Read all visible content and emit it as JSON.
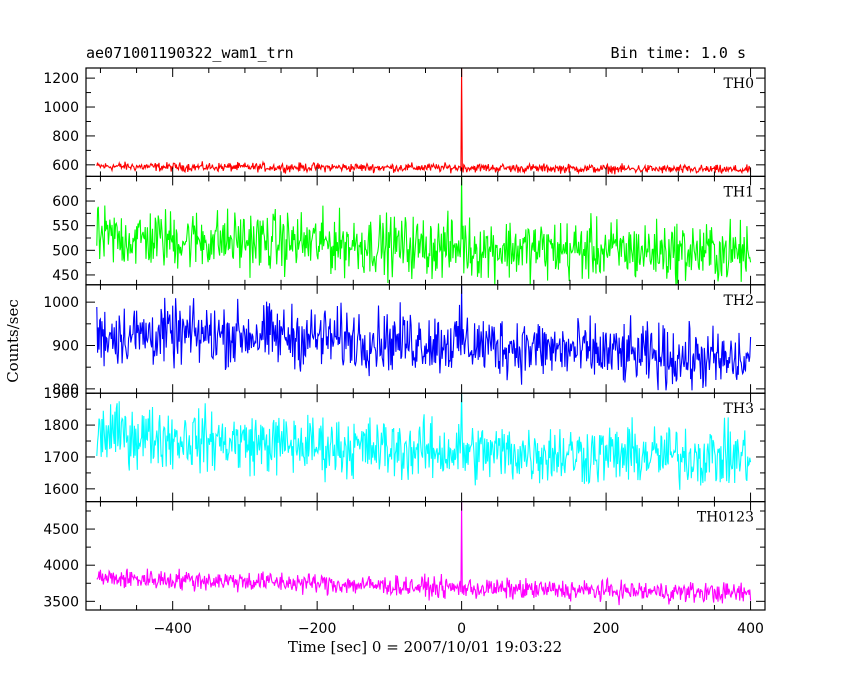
{
  "chart_data": {
    "type": "line",
    "title_left": "ae071001190322_wam1_trn",
    "title_right": "Bin time: 1.0 s",
    "xlabel": "Time [sec] 0 = 2007/10/01 19:03:22",
    "ylabel": "Counts/sec",
    "xlim": [
      -520,
      420
    ],
    "x_ticks": [
      -400,
      -200,
      0,
      200,
      400
    ],
    "x_range": [
      -505,
      400
    ],
    "bin_time": 1.0,
    "grid": false,
    "panels": [
      {
        "name": "TH0",
        "color": "#ff0000",
        "ylim": [
          520,
          1270
        ],
        "y_ticks": [
          600,
          800,
          1000,
          1200
        ],
        "trend": [
          [
            -505,
            590
          ],
          [
            -400,
            585
          ],
          [
            0,
            580
          ],
          [
            400,
            565
          ]
        ],
        "noise_amplitude": 45,
        "spikes": [
          {
            "x": 0,
            "y": 1270
          }
        ]
      },
      {
        "name": "TH1",
        "color": "#00ff00",
        "ylim": [
          430,
          650
        ],
        "y_ticks": [
          450,
          500,
          550,
          600
        ],
        "trend": [
          [
            -505,
            525
          ],
          [
            -300,
            520
          ],
          [
            0,
            505
          ],
          [
            400,
            495
          ]
        ],
        "noise_amplitude": 90,
        "spikes": [
          {
            "x": 0,
            "y": 650
          }
        ]
      },
      {
        "name": "TH2",
        "color": "#0000ff",
        "ylim": [
          790,
          1040
        ],
        "y_ticks": [
          800,
          900,
          1000
        ],
        "trend": [
          [
            -505,
            925
          ],
          [
            -300,
            925
          ],
          [
            0,
            905
          ],
          [
            400,
            860
          ]
        ],
        "noise_amplitude": 105,
        "spikes": [
          {
            "x": 0,
            "y": 1040
          }
        ]
      },
      {
        "name": "TH3",
        "color": "#00ffff",
        "ylim": [
          1560,
          1900
        ],
        "y_ticks": [
          1600,
          1700,
          1800,
          1900
        ],
        "trend": [
          [
            -505,
            1775
          ],
          [
            -300,
            1745
          ],
          [
            0,
            1715
          ],
          [
            400,
            1700
          ]
        ],
        "noise_amplitude": 140,
        "spikes": [
          {
            "x": 0,
            "y": 1900
          }
        ]
      },
      {
        "name": "TH0123",
        "color": "#ff00ff",
        "ylim": [
          3380,
          4880
        ],
        "y_ticks": [
          3500,
          4000,
          4500
        ],
        "trend": [
          [
            -505,
            3820
          ],
          [
            -300,
            3780
          ],
          [
            0,
            3680
          ],
          [
            400,
            3610
          ]
        ],
        "noise_amplitude": 210,
        "spikes": [
          {
            "x": 0,
            "y": 4880
          }
        ]
      }
    ]
  }
}
